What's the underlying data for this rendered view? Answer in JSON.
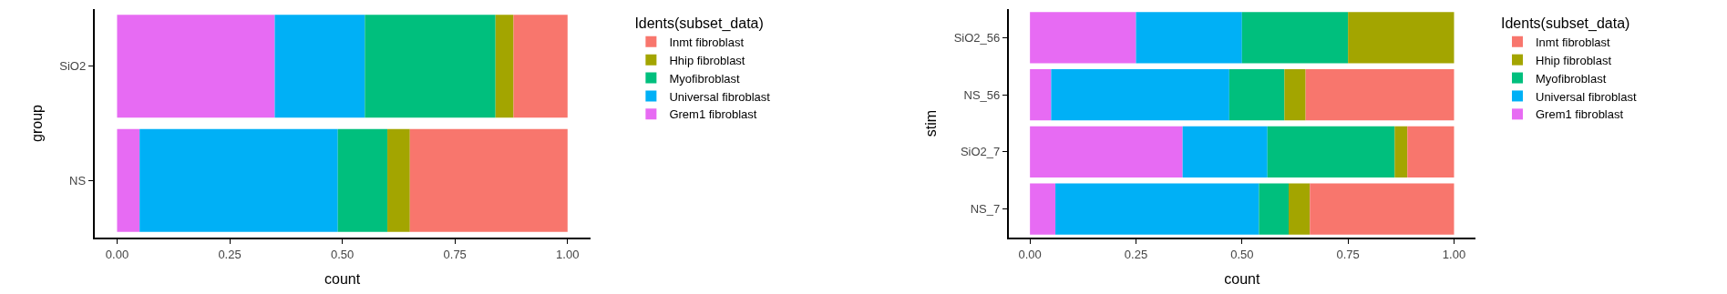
{
  "chart_data": [
    {
      "type": "bar",
      "orientation": "horizontal",
      "stacked": true,
      "xlabel": "count",
      "ylabel": "group",
      "legend_title": "Idents(subset_data)",
      "legend": "right",
      "categories": [
        "SiO2",
        "NS"
      ],
      "xlim": [
        -0.05,
        1.05
      ],
      "xticks": [
        {
          "value": 0,
          "label": "0.00"
        },
        {
          "value": 0.25,
          "label": "0.25"
        },
        {
          "value": 0.5,
          "label": "0.50"
        },
        {
          "value": 0.75,
          "label": "0.75"
        },
        {
          "value": 1,
          "label": "1.00"
        }
      ],
      "series": [
        {
          "name": "Grem1 fibroblast",
          "color": "#e76bf3",
          "values": [
            0.35,
            0.05
          ]
        },
        {
          "name": "Universal fibroblast",
          "color": "#00b0f6",
          "values": [
            0.2,
            0.44
          ]
        },
        {
          "name": "Myofibroblast",
          "color": "#00bf7d",
          "values": [
            0.29,
            0.11
          ]
        },
        {
          "name": "Hhip fibroblast",
          "color": "#a3a500",
          "values": [
            0.04,
            0.05
          ]
        },
        {
          "name": "Inmt fibroblast",
          "color": "#f8766d",
          "values": [
            0.12,
            0.35
          ]
        }
      ]
    },
    {
      "type": "bar",
      "orientation": "horizontal",
      "stacked": true,
      "xlabel": "count",
      "ylabel": "stim",
      "legend_title": "Idents(subset_data)",
      "legend": "right",
      "categories": [
        "SiO2_56",
        "NS_56",
        "SiO2_7",
        "NS_7"
      ],
      "xlim": [
        -0.05,
        1.05
      ],
      "xticks": [
        {
          "value": 0,
          "label": "0.00"
        },
        {
          "value": 0.25,
          "label": "0.25"
        },
        {
          "value": 0.5,
          "label": "0.50"
        },
        {
          "value": 0.75,
          "label": "0.75"
        },
        {
          "value": 1,
          "label": "1.00"
        }
      ],
      "series": [
        {
          "name": "Grem1 fibroblast",
          "color": "#e76bf3",
          "values": [
            0.25,
            0.05,
            0.36,
            0.06
          ]
        },
        {
          "name": "Universal fibroblast",
          "color": "#00b0f6",
          "values": [
            0.25,
            0.42,
            0.2,
            0.48
          ]
        },
        {
          "name": "Myofibroblast",
          "color": "#00bf7d",
          "values": [
            0.25,
            0.13,
            0.3,
            0.07
          ]
        },
        {
          "name": "Hhip fibroblast",
          "color": "#a3a500",
          "values": [
            0.25,
            0.05,
            0.03,
            0.05
          ]
        },
        {
          "name": "Inmt fibroblast",
          "color": "#f8766d",
          "values": [
            0,
            0.35,
            0.11,
            0.34
          ]
        }
      ]
    }
  ]
}
